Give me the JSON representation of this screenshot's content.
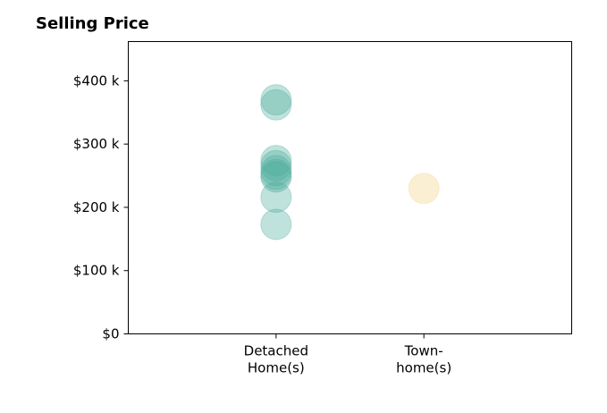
{
  "chart_data": {
    "type": "scatter",
    "title": "Selling Price",
    "xlabel": "",
    "ylabel": "",
    "categories": [
      {
        "lines": [
          "Detached",
          "Home(s)"
        ]
      },
      {
        "lines": [
          "Town-",
          "home(s)"
        ]
      }
    ],
    "x_range": [
      -1,
      2
    ],
    "ylim": [
      0,
      462
    ],
    "y_ticks": [
      {
        "value": 0,
        "label": "$0"
      },
      {
        "value": 100,
        "label": "$100 k"
      },
      {
        "value": 200,
        "label": "$200 k"
      },
      {
        "value": 300,
        "label": "$300 k"
      },
      {
        "value": 400,
        "label": "$400 k"
      }
    ],
    "series": [
      {
        "category_index": 0,
        "color": "#4aab9c",
        "values": [
          370,
          362,
          274,
          266,
          258,
          252,
          248,
          216,
          173
        ]
      },
      {
        "category_index": 1,
        "color": "#f7e3b5",
        "values": [
          230
        ]
      }
    ],
    "grid": false,
    "legend": "none"
  }
}
